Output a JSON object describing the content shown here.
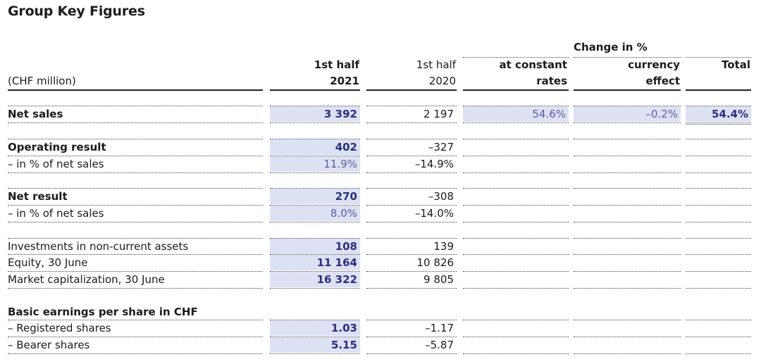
{
  "title": "Group Key Figures",
  "headers": {
    "unit": "(CHF million)",
    "col2021_line1": "1st half",
    "col2021_line2": "2021",
    "col2020_line1": "1st half",
    "col2020_line2": "2020",
    "change_group": "Change in %",
    "const_line1": "at constant",
    "const_line2": "rates",
    "curr_line1": "currency",
    "curr_line2": "effect",
    "total": "Total"
  },
  "rows": {
    "net_sales": {
      "label": "Net sales",
      "v2021": "3 392",
      "v2020": "2 197",
      "const": "54.6%",
      "curr": "–0.2%",
      "total": "54.4%"
    },
    "op_result": {
      "label": "Operating result",
      "v2021": "402",
      "v2020": "–327"
    },
    "op_pct": {
      "label": "– in % of net sales",
      "v2021": "11.9%",
      "v2020": "–14.9%"
    },
    "net_result": {
      "label": "Net result",
      "v2021": "270",
      "v2020": "–308"
    },
    "net_pct": {
      "label": "– in % of net sales",
      "v2021": "8.0%",
      "v2020": "–14.0%"
    },
    "investments": {
      "label": "Investments in non-current assets",
      "v2021": "108",
      "v2020": "139"
    },
    "equity": {
      "label": "Equity, 30 June",
      "v2021": "11 164",
      "v2020": "10 826"
    },
    "market_cap": {
      "label": "Market capitalization, 30 June",
      "v2021": "16 322",
      "v2020": "9 805"
    },
    "eps_head": {
      "label": "Basic earnings per share in CHF"
    },
    "registered": {
      "label": "– Registered shares",
      "v2021": "1.03",
      "v2020": "–1.17"
    },
    "bearer": {
      "label": "– Bearer shares",
      "v2021": "5.15",
      "v2020": "–5.87"
    }
  },
  "colors": {
    "shade": "#dde1f4",
    "accent": "#2b2f7a"
  }
}
